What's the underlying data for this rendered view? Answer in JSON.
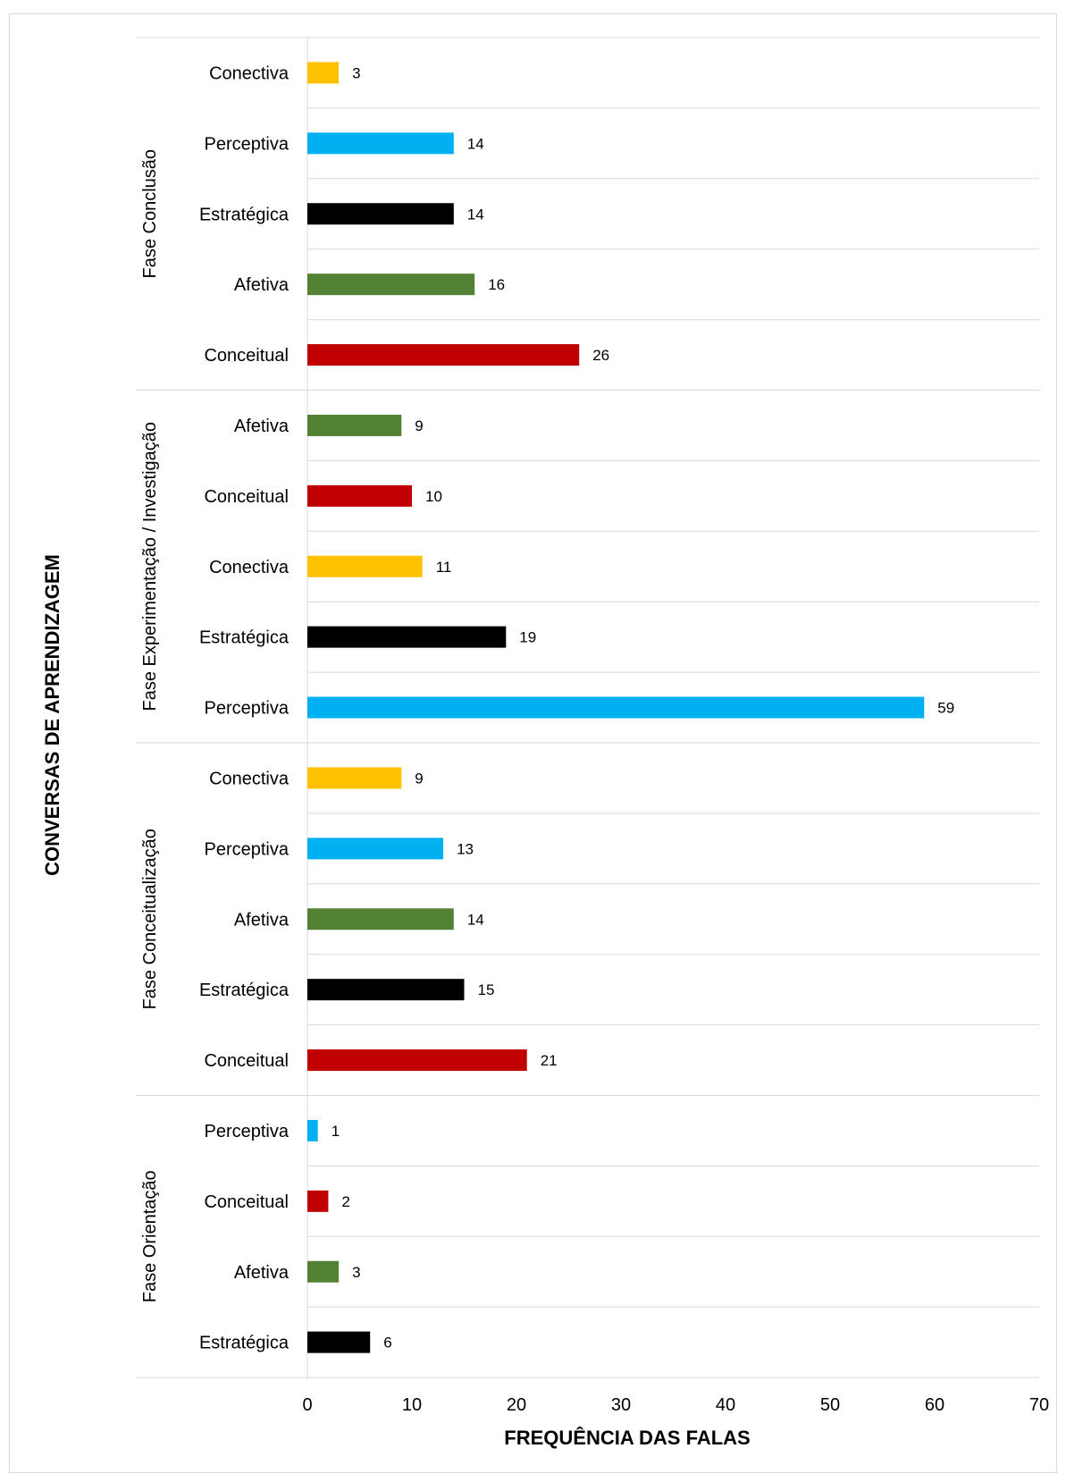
{
  "chart_data": {
    "type": "bar",
    "orientation": "horizontal",
    "xlabel": "FREQUÊNCIA DAS FALAS",
    "ylabel": "CONVERSAS DE APRENDIZAGEM",
    "xlim": [
      0,
      70
    ],
    "xticks": [
      0,
      10,
      20,
      30,
      40,
      50,
      60,
      70
    ],
    "grid": "horizontal-separators",
    "legend": "none",
    "colors": {
      "Conectiva": "#FFC000",
      "Perceptiva": "#00B0F0",
      "Estratégica": "#000000",
      "Afetiva": "#548235",
      "Conceitual": "#C00000"
    },
    "groups": [
      {
        "name": "Fase Conclusão",
        "items": [
          {
            "label": "Conectiva",
            "value": 3
          },
          {
            "label": "Perceptiva",
            "value": 14
          },
          {
            "label": "Estratégica",
            "value": 14
          },
          {
            "label": "Afetiva",
            "value": 16
          },
          {
            "label": "Conceitual",
            "value": 26
          }
        ]
      },
      {
        "name": "Fase Experimentação / Investigação",
        "items": [
          {
            "label": "Afetiva",
            "value": 9
          },
          {
            "label": "Conceitual",
            "value": 10
          },
          {
            "label": "Conectiva",
            "value": 11
          },
          {
            "label": "Estratégica",
            "value": 19
          },
          {
            "label": "Perceptiva",
            "value": 59
          }
        ]
      },
      {
        "name": "Fase Conceitualização",
        "items": [
          {
            "label": "Conectiva",
            "value": 9
          },
          {
            "label": "Perceptiva",
            "value": 13
          },
          {
            "label": "Afetiva",
            "value": 14
          },
          {
            "label": "Estratégica",
            "value": 15
          },
          {
            "label": "Conceitual",
            "value": 21
          }
        ]
      },
      {
        "name": "Fase Orientação",
        "items": [
          {
            "label": "Perceptiva",
            "value": 1
          },
          {
            "label": "Conceitual",
            "value": 2
          },
          {
            "label": "Afetiva",
            "value": 3
          },
          {
            "label": "Estratégica",
            "value": 6
          }
        ]
      }
    ]
  }
}
